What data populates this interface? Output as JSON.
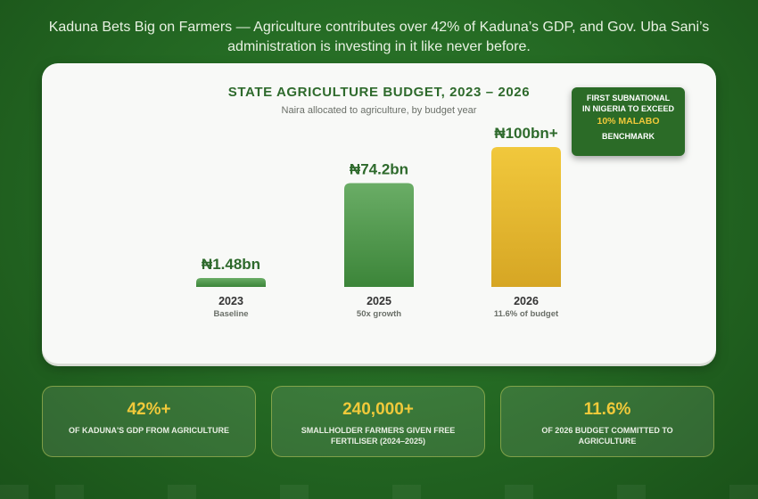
{
  "headline": "Kaduna Bets Big on Farmers — Agriculture contributes over 42% of Kaduna’s GDP, and Gov. Uba Sani’s administration is investing in it like never before.",
  "chart_data": {
    "type": "bar",
    "title": "STATE AGRICULTURE BUDGET, 2023 – 2026",
    "subtitle": "Naira allocated to agriculture, by budget year",
    "unit": "₦ billion",
    "categories": [
      "2023",
      "2025",
      "2026"
    ],
    "values": [
      1.48,
      74.2,
      100
    ],
    "value_labels": [
      "₦1.48bn",
      "₦74.2bn",
      "₦100bn+"
    ],
    "notes": [
      "Baseline",
      "50x growth",
      "11.6% of budget"
    ],
    "bar_colors": [
      "#4e9a4b",
      "#4e9a4b",
      "#e9bd2f"
    ]
  },
  "badge": {
    "line1": "FIRST SUBNATIONAL",
    "line2": "IN NIGERIA TO EXCEED",
    "highlight": "10% MALABO",
    "line3": "BENCHMARK"
  },
  "stats": [
    {
      "value": "42%+",
      "label": "OF KADUNA'S GDP FROM AGRICULTURE"
    },
    {
      "value": "240,000+",
      "label": "SMALLHOLDER FARMERS GIVEN FREE FERTILISER (2024–2025)"
    },
    {
      "value": "11.6%",
      "label": "OF 2026 BUDGET COMMITTED TO AGRICULTURE"
    }
  ],
  "colors": {
    "accent_gold": "#f0c93a",
    "title_green": "#2e6a2c",
    "background_green": "#256b24"
  }
}
